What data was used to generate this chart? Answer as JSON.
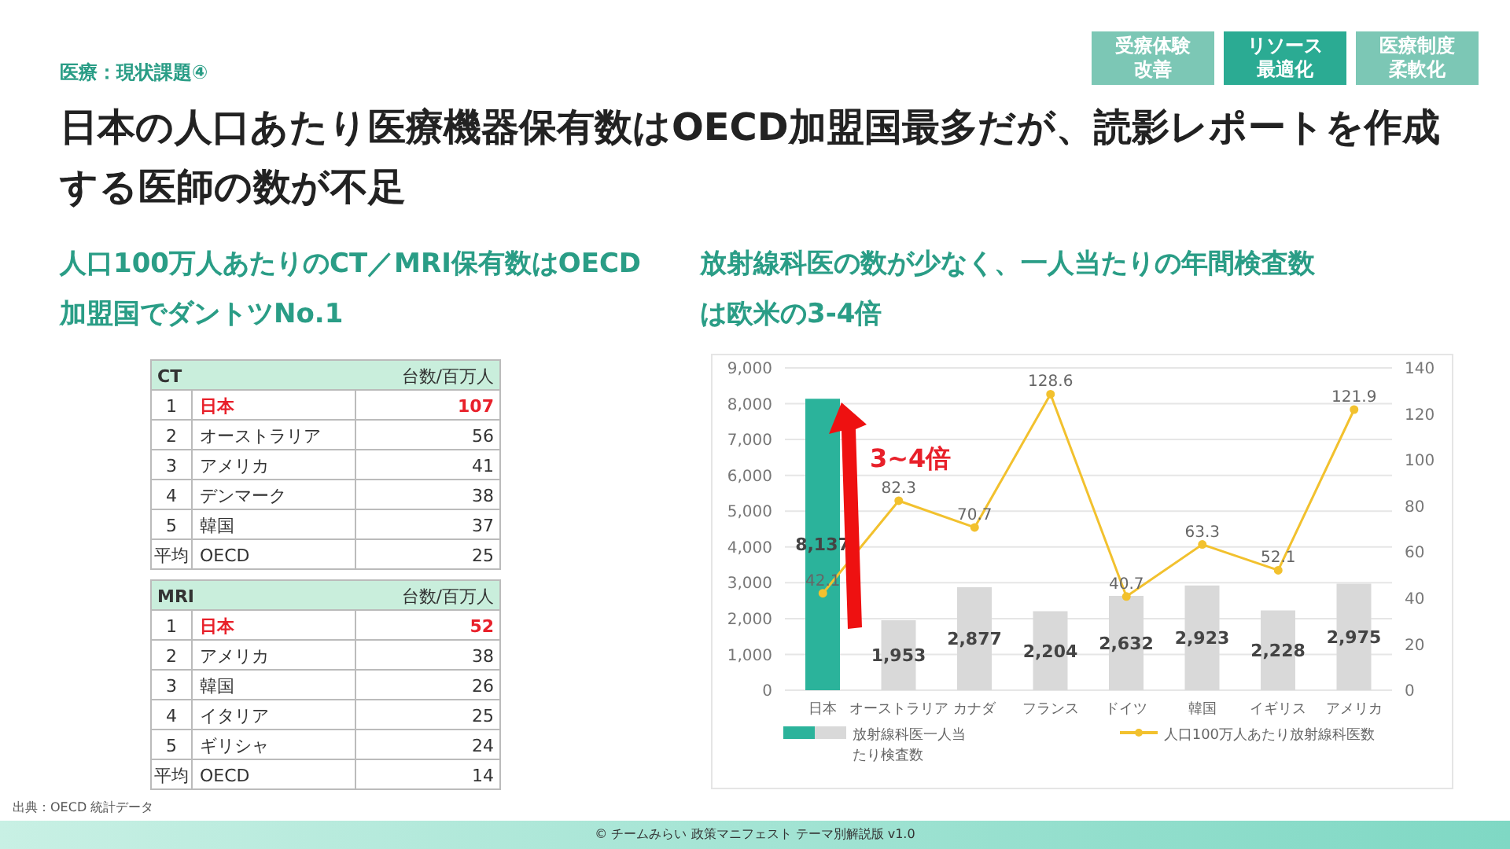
{
  "chart_data": [
    {
      "type": "other",
      "subtitle": "医療：現状課題④",
      "title": "日本の人口あたり医療機器保有数はOECD加盟国最多だが、読影レポートを作成する医師の数が不足",
      "annotations": [
        "受療体験改善",
        "リソース最適化",
        "医療制度柔軟化",
        "出典：OECD 統計データ",
        "© チームみらい 政策マニフェスト テーマ別解説版 v1.0"
      ]
    },
    {
      "type": "heatmap",
      "subtitle": "人口100万人あたりのCT／MRI保有数はOECD加盟国でダントツNo.1",
      "title": "CT",
      "categories": [
        "台数/百万人"
      ],
      "y_categories": [
        "日本",
        "オーストラリア",
        "アメリカ",
        "デンマーク",
        "韓国",
        "OECD"
      ],
      "y2_categories": [
        "1",
        "2",
        "3",
        "4",
        "5",
        "平均"
      ],
      "cells": [
        [
          107
        ],
        [
          56
        ],
        [
          41
        ],
        [
          38
        ],
        [
          37
        ],
        [
          25
        ]
      ],
      "data_labels": true,
      "colors": [
        "#e8202a",
        "#333333",
        "#333333",
        "#333333",
        "#333333",
        "#333333"
      ]
    },
    {
      "type": "heatmap",
      "title": "MRI",
      "categories": [
        "台数/百万人"
      ],
      "y_categories": [
        "日本",
        "アメリカ",
        "韓国",
        "イタリア",
        "ギリシャ",
        "OECD"
      ],
      "y2_categories": [
        "1",
        "2",
        "3",
        "4",
        "5",
        "平均"
      ],
      "cells": [
        [
          52
        ],
        [
          38
        ],
        [
          26
        ],
        [
          25
        ],
        [
          24
        ],
        [
          14
        ]
      ],
      "data_labels": true,
      "colors": [
        "#e8202a",
        "#333333",
        "#333333",
        "#333333",
        "#333333",
        "#333333"
      ]
    },
    {
      "type": "bar",
      "title": "放射線科医の数が少なく、一人当たりの年間検査数は欧米の3-4倍",
      "categories": [
        "日本",
        "オーストラリア",
        "カナダ",
        "フランス",
        "ドイツ",
        "韓国",
        "イギリス",
        "アメリカ"
      ],
      "series": [
        {
          "type": "bar",
          "name": "放射線科医一人当たり検査数",
          "colors": [
            "#2bb39b",
            "#d9d9d9",
            "#d9d9d9",
            "#d9d9d9",
            "#d9d9d9",
            "#d9d9d9",
            "#d9d9d9",
            "#d9d9d9"
          ],
          "values": [
            8137,
            1953,
            2877,
            2204,
            2632,
            2923,
            2228,
            2975
          ],
          "value_labels": [
            "8,137",
            "1,953",
            "2,877",
            "2,204",
            "2,632",
            "2,923",
            "2,228",
            "2,975"
          ]
        },
        {
          "type": "line",
          "name": "人口100万人あたり放射線科医数",
          "color": "#f2c12e",
          "axis": "y2",
          "values": [
            42.1,
            82.3,
            70.7,
            128.6,
            40.7,
            63.3,
            52.1,
            121.9
          ]
        }
      ],
      "ylim": [
        0,
        9000
      ],
      "yticks": [
        0,
        {
          "value": 1000,
          "label": "1,000"
        },
        {
          "value": 2000,
          "label": "2,000"
        },
        {
          "value": 3000,
          "label": "3,000"
        },
        {
          "value": 4000,
          "label": "4,000"
        },
        {
          "value": 5000,
          "label": "5,000"
        },
        {
          "value": 6000,
          "label": "6,000"
        },
        {
          "value": 7000,
          "label": "7,000"
        },
        {
          "value": 8000,
          "label": "8,000"
        },
        {
          "value": 9000,
          "label": "9,000"
        }
      ],
      "y2lim": [
        0,
        140
      ],
      "y2ticks": [
        0,
        20,
        40,
        60,
        80,
        100,
        120,
        140
      ],
      "grid": "y",
      "legend": "bottom",
      "data_labels": true,
      "marker": "circle",
      "line_style": "solid",
      "annotations": [
        "3~4倍"
      ]
    }
  ]
}
